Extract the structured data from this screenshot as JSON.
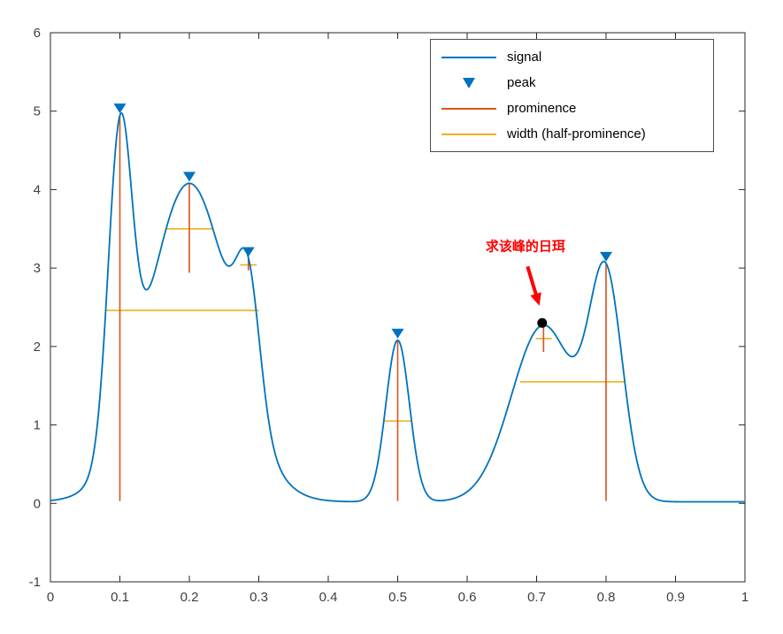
{
  "chart_data": {
    "type": "line",
    "title": "",
    "xlabel": "",
    "ylabel": "",
    "xlim": [
      0,
      1
    ],
    "ylim": [
      -1,
      6
    ],
    "grid": false,
    "x_ticks": [
      0,
      0.1,
      0.2,
      0.3,
      0.4,
      0.5,
      0.6,
      0.7,
      0.8,
      0.9,
      1
    ],
    "x_tick_labels": [
      "0",
      "0.1",
      "0.2",
      "0.3",
      "0.4",
      "0.5",
      "0.6",
      "0.7",
      "0.8",
      "0.9",
      "1"
    ],
    "y_ticks": [
      -1,
      0,
      1,
      2,
      3,
      4,
      5,
      6
    ],
    "y_tick_labels": [
      "-1",
      "0",
      "1",
      "2",
      "3",
      "4",
      "5",
      "6"
    ],
    "colors": {
      "signal": "#0072BD",
      "prominence": "#D95319",
      "width": "#EDB120",
      "annotation": "#FF0000",
      "dot": "#000000",
      "axis": "#262626",
      "tick_text": "#404040"
    },
    "signal": {
      "baseline": 0.02,
      "gaussians": [
        {
          "c": 0.1,
          "w": 0.024,
          "h": 3.91
        },
        {
          "c": 0.2,
          "w": 0.085,
          "h": 4.06
        },
        {
          "c": 0.285,
          "w": 0.024,
          "h": 1.62
        },
        {
          "c": 0.5,
          "w": 0.024,
          "h": 2.06
        },
        {
          "c": 0.71,
          "w": 0.065,
          "h": 2.25
        },
        {
          "c": 0.8,
          "w": 0.034,
          "h": 2.71
        }
      ]
    },
    "peaks": [
      [
        0.1,
        4.95
      ],
      [
        0.2,
        4.08
      ],
      [
        0.285,
        3.12
      ],
      [
        0.5,
        2.08
      ],
      [
        0.8,
        3.06
      ]
    ],
    "prominence_lines": [
      [
        0.1,
        0.03,
        4.95
      ],
      [
        0.2,
        2.94,
        4.08
      ],
      [
        0.285,
        2.97,
        3.12
      ],
      [
        0.5,
        0.03,
        2.08
      ],
      [
        0.71,
        1.93,
        2.27
      ],
      [
        0.8,
        0.03,
        3.06
      ]
    ],
    "width_lines": [
      [
        2.46,
        0.079,
        0.3
      ],
      [
        3.5,
        0.168,
        0.233
      ],
      [
        3.04,
        0.273,
        0.297
      ],
      [
        1.05,
        0.48,
        0.52
      ],
      [
        2.1,
        0.699,
        0.722
      ],
      [
        1.55,
        0.676,
        0.828
      ]
    ],
    "legend": {
      "position": "north",
      "entries": [
        {
          "label": "signal",
          "marker": "line",
          "color_key": "signal"
        },
        {
          "label": "peak",
          "marker": "triangle-down",
          "color_key": "signal"
        },
        {
          "label": "prominence",
          "marker": "line",
          "color_key": "prominence"
        },
        {
          "label": "width (half-prominence)",
          "marker": "line",
          "color_key": "width"
        }
      ]
    },
    "annotation": {
      "text": "求该峰的日珥",
      "text_pos": {
        "x": 0.684,
        "y": 3.22
      },
      "arrow": {
        "from": {
          "x": 0.687,
          "y": 3.02
        },
        "to": {
          "x": 0.704,
          "y": 2.52
        }
      },
      "dot": {
        "x": 0.708,
        "y": 2.3
      },
      "annotated_peak": {
        "x": 0.71,
        "y": 2.27
      }
    }
  }
}
